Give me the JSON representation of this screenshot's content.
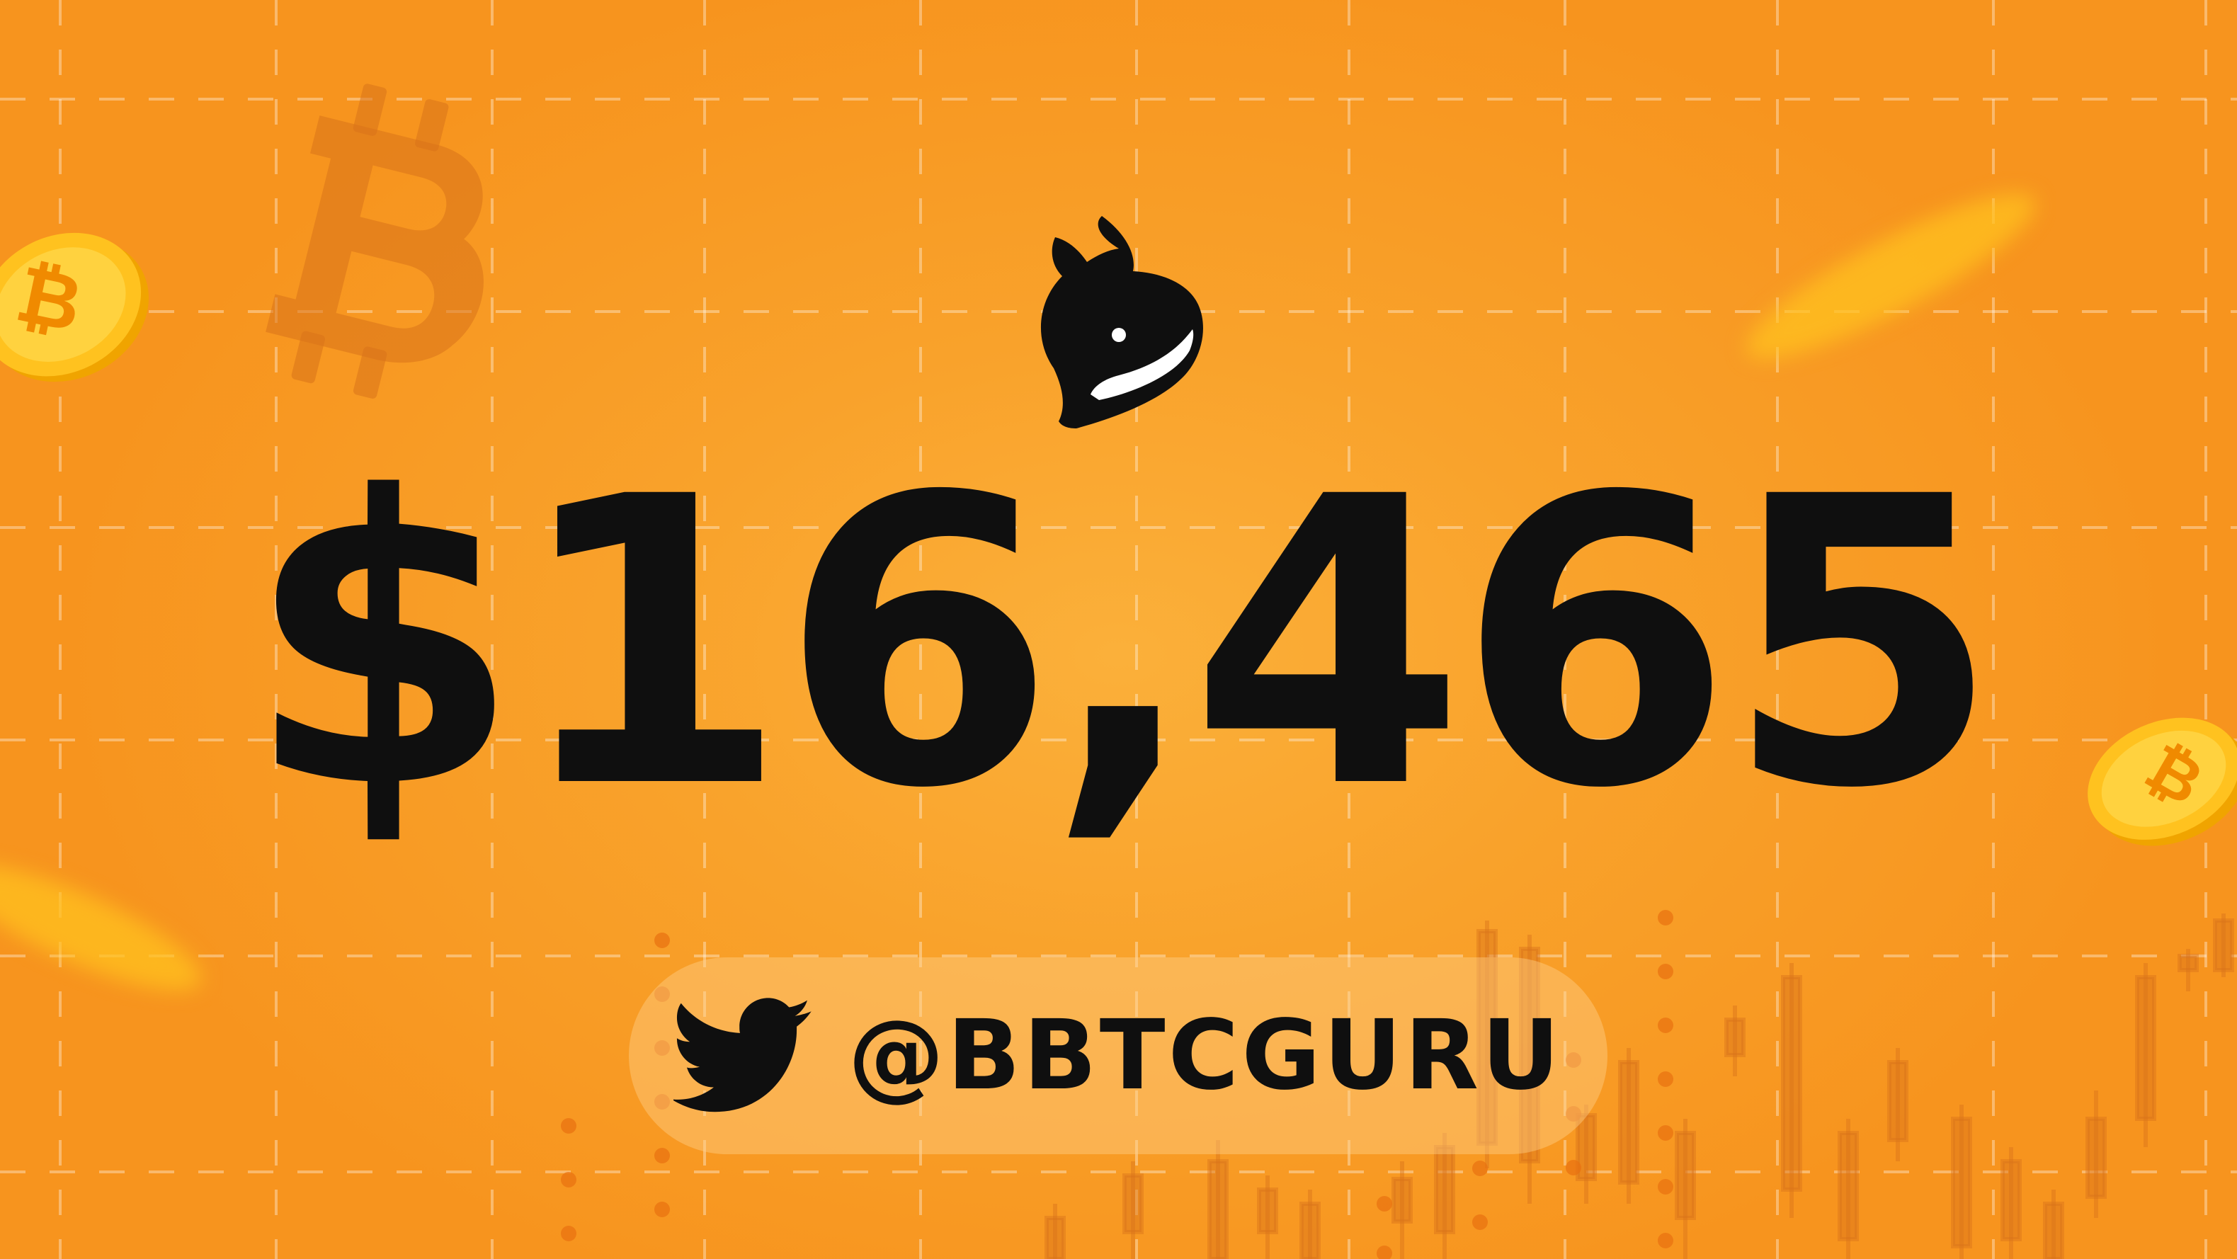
{
  "price": {
    "text": "$16,465"
  },
  "social": {
    "platform": "twitter",
    "icon": "twitter-bird-icon",
    "handle": "@BBTCGURU"
  },
  "decorations": {
    "icons": [
      "bitcoin-logo-icon",
      "bitcoin-coin-icon",
      "whale-icon",
      "candlestick-chart-icon"
    ]
  },
  "colors": {
    "background": "#f7941e",
    "background_center": "#fbb03a",
    "text": "#0f0f0f",
    "coin": "#ffc21f",
    "pill": "#ffd28c"
  }
}
